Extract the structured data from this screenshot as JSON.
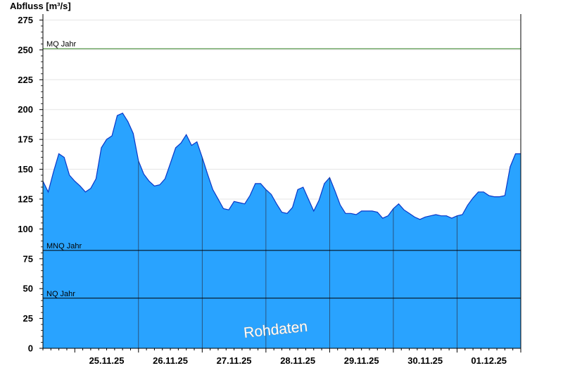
{
  "chart_data": {
    "type": "area",
    "ylabel": "Abfluss [m³/s]",
    "ylim": [
      0,
      280
    ],
    "yticks": [
      0,
      25,
      50,
      75,
      100,
      125,
      150,
      175,
      200,
      225,
      250,
      275
    ],
    "xlim": [
      "24.11.25 12:00",
      "02.12.25 00:00"
    ],
    "xticks": [
      {
        "label": "25.11.25",
        "x": "25.11.25 12:00"
      },
      {
        "label": "26.11.25",
        "x": "26.11.25 12:00"
      },
      {
        "label": "27.11.25",
        "x": "27.11.25 12:00"
      },
      {
        "label": "28.11.25",
        "x": "28.11.25 12:00"
      },
      {
        "label": "29.11.25",
        "x": "29.11.25 12:00"
      },
      {
        "label": "30.11.25",
        "x": "30.11.25 12:00"
      },
      {
        "label": "01.12.25",
        "x": "01.12.25 12:00"
      }
    ],
    "day_lines": [
      "26.11.25 00:00",
      "27.11.25 00:00",
      "28.11.25 00:00",
      "29.11.25 00:00",
      "30.11.25 00:00",
      "01.12.25 00:00"
    ],
    "reference_lines": [
      {
        "label": "MQ Jahr",
        "value": 251,
        "color": "#2e7d1f"
      },
      {
        "label": "MNQ Jahr",
        "value": 82,
        "color": "#000000"
      },
      {
        "label": "NQ Jahr",
        "value": 42,
        "color": "#000000"
      }
    ],
    "series": [
      {
        "x": [
          "24.11.25 12:00",
          "24.11.25 14:00",
          "24.11.25 16:00",
          "24.11.25 18:00",
          "24.11.25 20:00",
          "24.11.25 22:00",
          "25.11.25 00:00",
          "25.11.25 02:00",
          "25.11.25 04:00",
          "25.11.25 06:00",
          "25.11.25 08:00",
          "25.11.25 10:00",
          "25.11.25 12:00",
          "25.11.25 14:00",
          "25.11.25 16:00",
          "25.11.25 18:00",
          "25.11.25 20:00",
          "25.11.25 22:00",
          "26.11.25 00:00",
          "26.11.25 02:00",
          "26.11.25 04:00",
          "26.11.25 06:00",
          "26.11.25 08:00",
          "26.11.25 10:00",
          "26.11.25 12:00",
          "26.11.25 14:00",
          "26.11.25 16:00",
          "26.11.25 18:00",
          "26.11.25 20:00",
          "26.11.25 22:00",
          "27.11.25 00:00",
          "27.11.25 02:00",
          "27.11.25 04:00",
          "27.11.25 06:00",
          "27.11.25 08:00",
          "27.11.25 10:00",
          "27.11.25 12:00",
          "27.11.25 14:00",
          "27.11.25 16:00",
          "27.11.25 18:00",
          "27.11.25 20:00",
          "27.11.25 22:00",
          "28.11.25 00:00",
          "28.11.25 02:00",
          "28.11.25 04:00",
          "28.11.25 06:00",
          "28.11.25 08:00",
          "28.11.25 10:00",
          "28.11.25 12:00",
          "28.11.25 14:00",
          "28.11.25 16:00",
          "28.11.25 18:00",
          "28.11.25 20:00",
          "28.11.25 22:00",
          "29.11.25 00:00",
          "29.11.25 02:00",
          "29.11.25 04:00",
          "29.11.25 06:00",
          "29.11.25 08:00",
          "29.11.25 10:00",
          "29.11.25 12:00",
          "29.11.25 14:00",
          "29.11.25 16:00",
          "29.11.25 18:00",
          "29.11.25 20:00",
          "29.11.25 22:00",
          "30.11.25 00:00",
          "30.11.25 02:00",
          "30.11.25 04:00",
          "30.11.25 06:00",
          "30.11.25 08:00",
          "30.11.25 10:00",
          "30.11.25 12:00",
          "30.11.25 14:00",
          "30.11.25 16:00",
          "30.11.25 18:00",
          "30.11.25 20:00",
          "30.11.25 22:00",
          "01.12.25 00:00",
          "01.12.25 02:00",
          "01.12.25 04:00",
          "01.12.25 06:00",
          "01.12.25 08:00",
          "01.12.25 10:00",
          "01.12.25 12:00",
          "01.12.25 14:00",
          "01.12.25 16:00",
          "01.12.25 18:00",
          "01.12.25 20:00",
          "01.12.25 22:00"
        ],
        "y": [
          140,
          131,
          148,
          163,
          160,
          145,
          140,
          136,
          131,
          134,
          142,
          168,
          175,
          178,
          195,
          197,
          190,
          180,
          157,
          146,
          140,
          136,
          137,
          142,
          155,
          168,
          172,
          179,
          170,
          173,
          160,
          146,
          133,
          125,
          117,
          116,
          123,
          122,
          121,
          128,
          138,
          138,
          133,
          129,
          121,
          114,
          113,
          118,
          133,
          135,
          125,
          115,
          124,
          138,
          143,
          132,
          120,
          113,
          113,
          112,
          115,
          115,
          115,
          114,
          109,
          111,
          117,
          121,
          116,
          113,
          110,
          108,
          110,
          111,
          112,
          111,
          111,
          109,
          111,
          112,
          120,
          126,
          131,
          131,
          128,
          127,
          127,
          128,
          152,
          163
        ]
      }
    ]
  },
  "watermark": "Rohdaten"
}
